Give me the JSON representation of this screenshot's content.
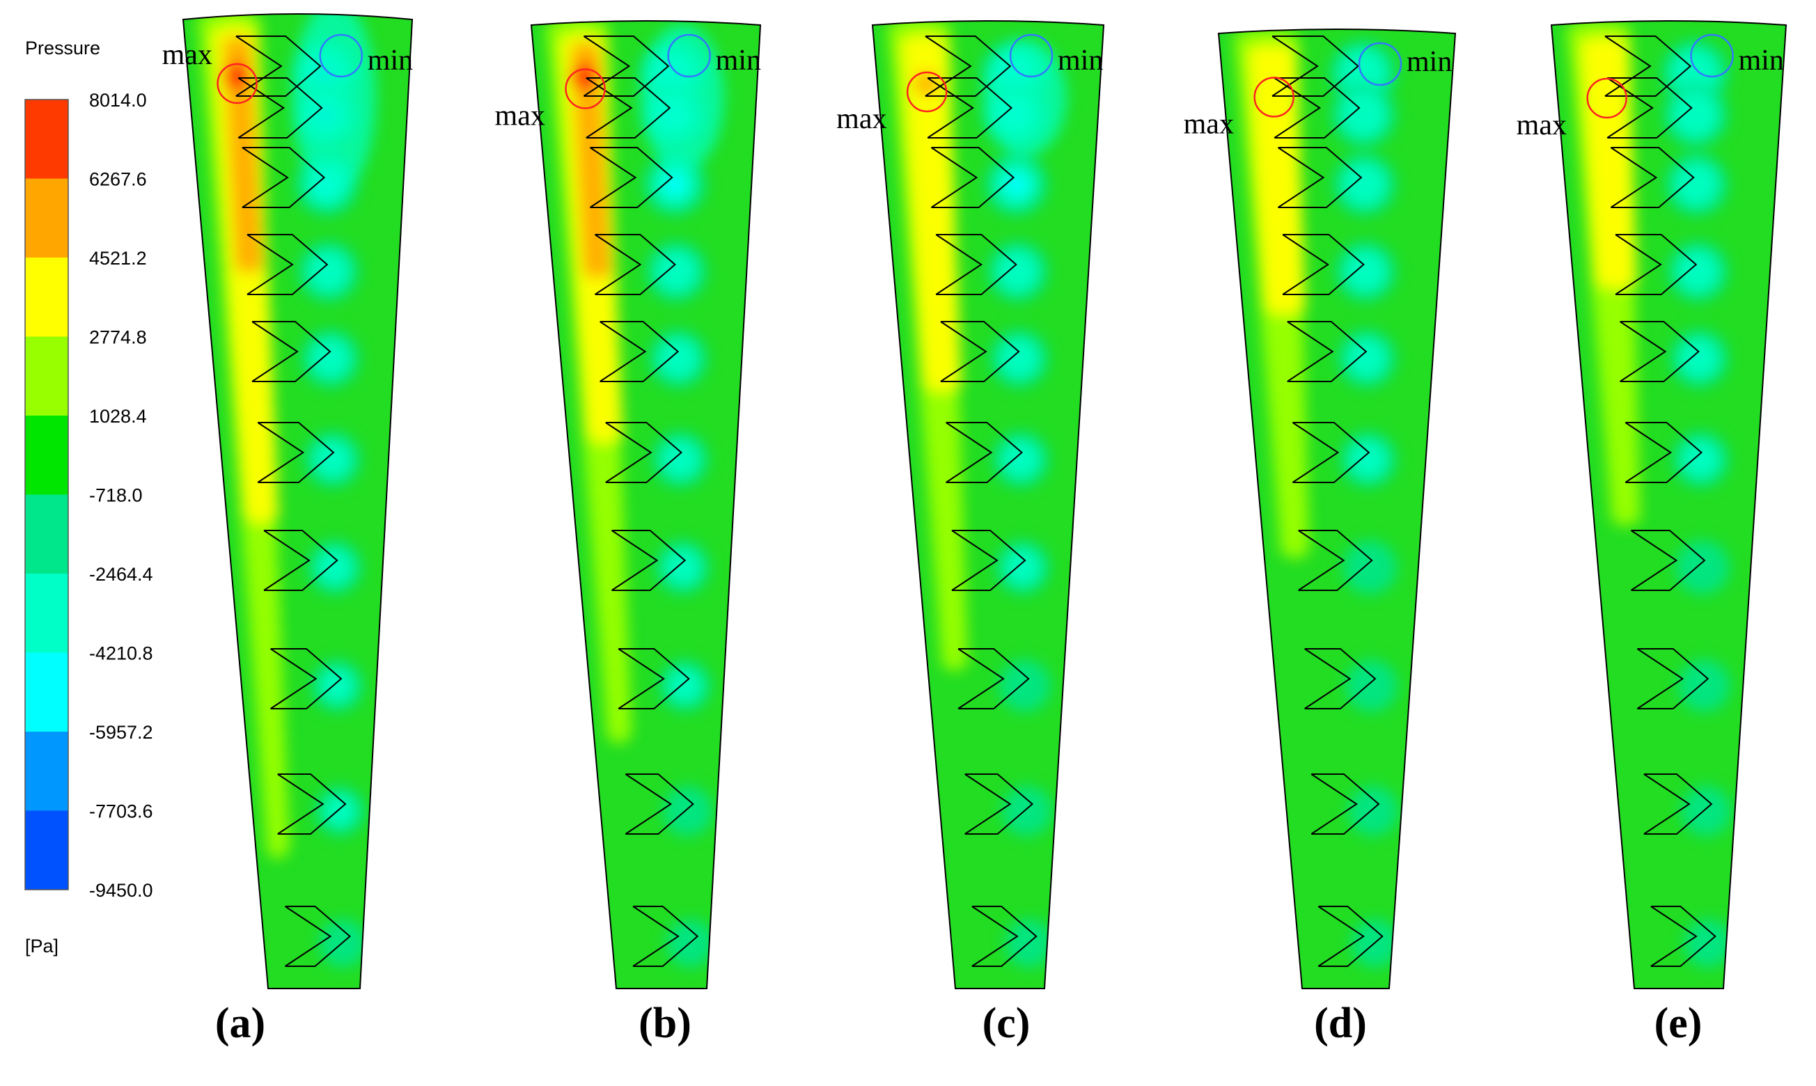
{
  "legend": {
    "title": "Pressure",
    "unit": "[Pa]",
    "levels": [
      "8014.0",
      "6267.6",
      "4521.2",
      "2774.8",
      "1028.4",
      "-718.0",
      "-2464.4",
      "-4210.8",
      "-5957.2",
      "-7703.6",
      "-9450.0"
    ],
    "colors": [
      "#ff3a00",
      "#ffa600",
      "#ffff00",
      "#97ff00",
      "#00e600",
      "#00e68a",
      "#00ffc6",
      "#00ffff",
      "#0098ff",
      "#0052ff"
    ]
  },
  "colors": {
    "background_field": "#22dd22",
    "outline": "#000000",
    "max_marker": "#ff2222",
    "min_marker": "#3377ff"
  },
  "annotations": {
    "max": "max",
    "min": "min"
  },
  "panels": [
    {
      "label": "(a)",
      "intensity": 1.0
    },
    {
      "label": "(b)",
      "intensity": 0.75
    },
    {
      "label": "(c)",
      "intensity": 0.6
    },
    {
      "label": "(d)",
      "intensity": 0.35
    },
    {
      "label": "(e)",
      "intensity": 0.3
    }
  ]
}
